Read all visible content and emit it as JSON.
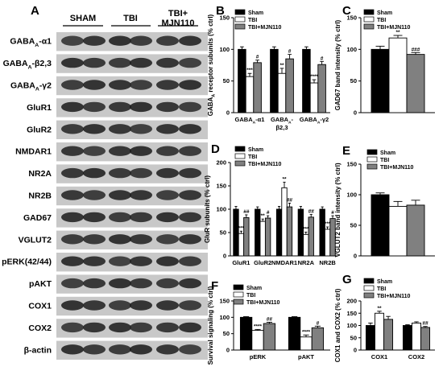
{
  "western_blot": {
    "panel_letter": "A",
    "groups": [
      "SHAM",
      "TBI",
      "TBI+\nMJN110"
    ],
    "rows": [
      {
        "label": "GABA",
        "sub": "A",
        "suffix": "-α1"
      },
      {
        "label": "GABA",
        "sub": "A",
        "suffix": "-β2,3"
      },
      {
        "label": "GABA",
        "sub": "A",
        "suffix": "-γ2"
      },
      {
        "label": "GluR1"
      },
      {
        "label": "GluR2"
      },
      {
        "label": "NMDAR1"
      },
      {
        "label": "NR2A"
      },
      {
        "label": "NR2B"
      },
      {
        "label": "GAD67"
      },
      {
        "label": "VGLUT2"
      },
      {
        "label": "pERK(42/44)"
      },
      {
        "label": "pAKT"
      },
      {
        "label": "COX1"
      },
      {
        "label": "COX2"
      },
      {
        "label": "β-actin"
      }
    ]
  },
  "legend": [
    "Sham",
    "TBI",
    "TBI+MJN110"
  ],
  "colors": {
    "sham": "#000000",
    "tbi": "#ffffff",
    "mjn": "#808080"
  },
  "chart_data": [
    {
      "panel": "B",
      "type": "bar",
      "ylabel": "GABAA receptor subunits (% ctrl)",
      "ylabel_main": "GABA",
      "ylabel_sub": "A",
      "ylabel_rest": " receptor subunits (% ctrl)",
      "ylim": [
        0,
        150
      ],
      "yticks": [
        0,
        50,
        100,
        150
      ],
      "categories": [
        "GABAA-α1",
        "GABAA-β2,3",
        "GABAA-γ2"
      ],
      "category_ticks": [
        [
          "GABA",
          "A",
          "-α1"
        ],
        [
          "GABA",
          "A",
          "-"
        ],
        [
          "GABA",
          "A",
          "-γ2"
        ]
      ],
      "category_ticks_line2": [
        "",
        "β2,3",
        ""
      ],
      "series": [
        {
          "name": "Sham",
          "values": [
            100,
            100,
            100
          ],
          "errors": [
            4,
            4,
            4
          ],
          "marks": [
            "",
            "",
            ""
          ]
        },
        {
          "name": "TBI",
          "values": [
            57,
            62,
            47
          ],
          "errors": [
            5,
            8,
            5
          ],
          "marks": [
            "***",
            "**",
            "****"
          ]
        },
        {
          "name": "TBI+MJN110",
          "values": [
            79,
            85,
            76
          ],
          "errors": [
            4,
            7,
            5
          ],
          "marks": [
            "#",
            "#",
            "#"
          ]
        }
      ]
    },
    {
      "panel": "C",
      "type": "bar",
      "ylabel": "GAD67 band intensity (% ctrl)",
      "ylim": [
        0,
        150
      ],
      "yticks": [
        0,
        50,
        100,
        150
      ],
      "categories": [
        ""
      ],
      "series": [
        {
          "name": "Sham",
          "values": [
            100
          ],
          "errors": [
            5
          ],
          "marks": [
            ""
          ]
        },
        {
          "name": "TBI",
          "values": [
            118
          ],
          "errors": [
            4
          ],
          "marks": [
            "**"
          ]
        },
        {
          "name": "TBI+MJN110",
          "values": [
            92
          ],
          "errors": [
            3
          ],
          "marks": [
            "###"
          ]
        }
      ]
    },
    {
      "panel": "D",
      "type": "bar",
      "ylabel": "GluR subunits (% ctrl)",
      "ylim": [
        0,
        200
      ],
      "yticks": [
        0,
        50,
        100,
        150,
        200
      ],
      "categories": [
        "GluR1",
        "GluR2",
        "NMDAR1",
        "NR2A",
        "NR2B"
      ],
      "series": [
        {
          "name": "Sham",
          "values": [
            100,
            100,
            100,
            100,
            100
          ],
          "errors": [
            6,
            5,
            6,
            6,
            5
          ],
          "marks": [
            "",
            "",
            "",
            "",
            ""
          ]
        },
        {
          "name": "TBI",
          "values": [
            48,
            74,
            146,
            46,
            57
          ],
          "errors": [
            5,
            5,
            12,
            5,
            5
          ],
          "marks": [
            "***",
            "**",
            "**",
            "***",
            "***"
          ]
        },
        {
          "name": "TBI+MJN110",
          "values": [
            82,
            81,
            105,
            83,
            80
          ],
          "errors": [
            6,
            5,
            8,
            6,
            6
          ],
          "marks": [
            "##",
            "#",
            "##",
            "##",
            "#"
          ]
        }
      ]
    },
    {
      "panel": "E",
      "type": "bar",
      "ylabel": "VGLUT2 band intensity (% ctrl)",
      "ylim": [
        0,
        150
      ],
      "yticks": [
        0,
        50,
        100,
        150
      ],
      "categories": [
        ""
      ],
      "series": [
        {
          "name": "Sham",
          "values": [
            100
          ],
          "errors": [
            3
          ],
          "marks": [
            ""
          ]
        },
        {
          "name": "TBI",
          "values": [
            81
          ],
          "errors": [
            8
          ],
          "marks": [
            ""
          ]
        },
        {
          "name": "TBI+MJN110",
          "values": [
            83
          ],
          "errors": [
            8
          ],
          "marks": [
            ""
          ]
        }
      ]
    },
    {
      "panel": "F",
      "type": "bar",
      "ylabel": "Survival signaling (% ctrl)",
      "ylim": [
        0,
        150
      ],
      "yticks": [
        0,
        50,
        100,
        150
      ],
      "categories": [
        "pERK",
        "pAKT"
      ],
      "series": [
        {
          "name": "Sham",
          "values": [
            100,
            100
          ],
          "errors": [
            2,
            2
          ],
          "marks": [
            "",
            ""
          ]
        },
        {
          "name": "TBI",
          "values": [
            60,
            40
          ],
          "errors": [
            3,
            6
          ],
          "marks": [
            "****",
            "****"
          ]
        },
        {
          "name": "TBI+MJN110",
          "values": [
            81,
            68
          ],
          "errors": [
            4,
            5
          ],
          "marks": [
            "##",
            "#"
          ]
        }
      ]
    },
    {
      "panel": "G",
      "type": "bar",
      "ylabel": "COX1 and COX2 (% ctrl)",
      "ylim": [
        0,
        200
      ],
      "yticks": [
        0,
        50,
        100,
        150,
        200
      ],
      "categories": [
        "COX1",
        "COX2"
      ],
      "series": [
        {
          "name": "Sham",
          "values": [
            100,
            100
          ],
          "errors": [
            10,
            3
          ],
          "marks": [
            "",
            ""
          ]
        },
        {
          "name": "TBI",
          "values": [
            150,
            110
          ],
          "errors": [
            8,
            5
          ],
          "marks": [
            "**",
            ""
          ]
        },
        {
          "name": "TBI+MJN110",
          "values": [
            125,
            92
          ],
          "errors": [
            12,
            4
          ],
          "marks": [
            "",
            "##"
          ]
        }
      ]
    }
  ]
}
